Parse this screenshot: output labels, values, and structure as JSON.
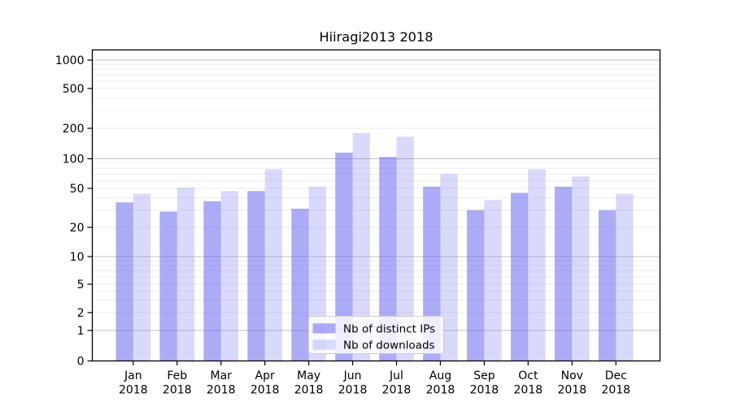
{
  "chart_data": {
    "type": "bar",
    "title": "Hiiragi2013 2018",
    "categories": [
      "Jan",
      "Feb",
      "Mar",
      "Apr",
      "May",
      "Jun",
      "Jul",
      "Aug",
      "Sep",
      "Oct",
      "Nov",
      "Dec"
    ],
    "year_label": "2018",
    "series": [
      {
        "name": "Nb of distinct IPs",
        "opacity": 0.55,
        "values": [
          36,
          29,
          37,
          47,
          31,
          115,
          104,
          52,
          30,
          45,
          52,
          30
        ]
      },
      {
        "name": "Nb of downloads",
        "opacity": 0.25,
        "values": [
          44,
          51,
          47,
          78,
          52,
          180,
          165,
          70,
          38,
          78,
          66,
          44
        ]
      }
    ],
    "yscale": "log with zero baseline (ticks 0,1,2,5,10,20,50,100,200,500,1000)",
    "ylim": [
      0,
      1000
    ],
    "ytick_labels": [
      "0",
      "1",
      "2",
      "5",
      "10",
      "20",
      "50",
      "100",
      "200",
      "500",
      "1000"
    ],
    "ytick_values": [
      0,
      1,
      2,
      5,
      10,
      20,
      50,
      100,
      200,
      500,
      1000
    ],
    "grid": "horizontal, log minor + major lines",
    "legend_position": "lower center inside plot"
  },
  "colors": {
    "bar_base": "#6666ee",
    "grid_major": "#c0c0c0",
    "grid_minor": "#ececec",
    "axis": "#000000",
    "legend_border": "#cccccc",
    "legend_background": "#ffffff",
    "background": "#ffffff"
  }
}
